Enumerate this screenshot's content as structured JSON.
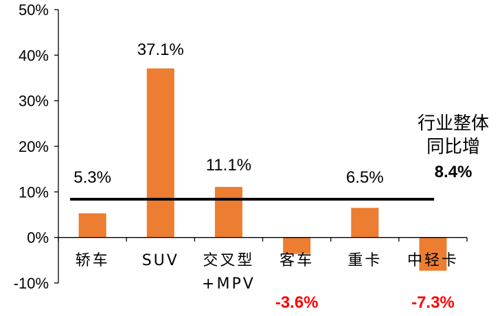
{
  "chart_data": {
    "type": "bar",
    "categories": [
      [
        "轿车"
      ],
      [
        "SUV"
      ],
      [
        "交叉型",
        "+MPV"
      ],
      [
        "客车"
      ],
      [
        "重卡"
      ],
      [
        "中轻卡"
      ]
    ],
    "values": [
      5.3,
      37.1,
      11.1,
      -3.6,
      6.5,
      -7.3
    ],
    "value_labels": [
      "5.3%",
      "37.1%",
      "11.1%",
      "-3.6%",
      "6.5%",
      "-7.3%"
    ],
    "ylim": [
      -10,
      50
    ],
    "yticks": [
      -10,
      0,
      10,
      20,
      30,
      40,
      50
    ],
    "ytick_labels": [
      "-10%",
      "0%",
      "10%",
      "20%",
      "30%",
      "40%",
      "50%"
    ],
    "reference_line": {
      "value": 8.4,
      "label_lines": [
        "行业整体",
        "同比增"
      ],
      "label_value": "8.4%"
    },
    "colors": {
      "bar": "#ED7D31",
      "negative_label": "#FF0000",
      "reference_line": "#000000",
      "axis": "#000000"
    },
    "grid": false,
    "legend": "none"
  }
}
